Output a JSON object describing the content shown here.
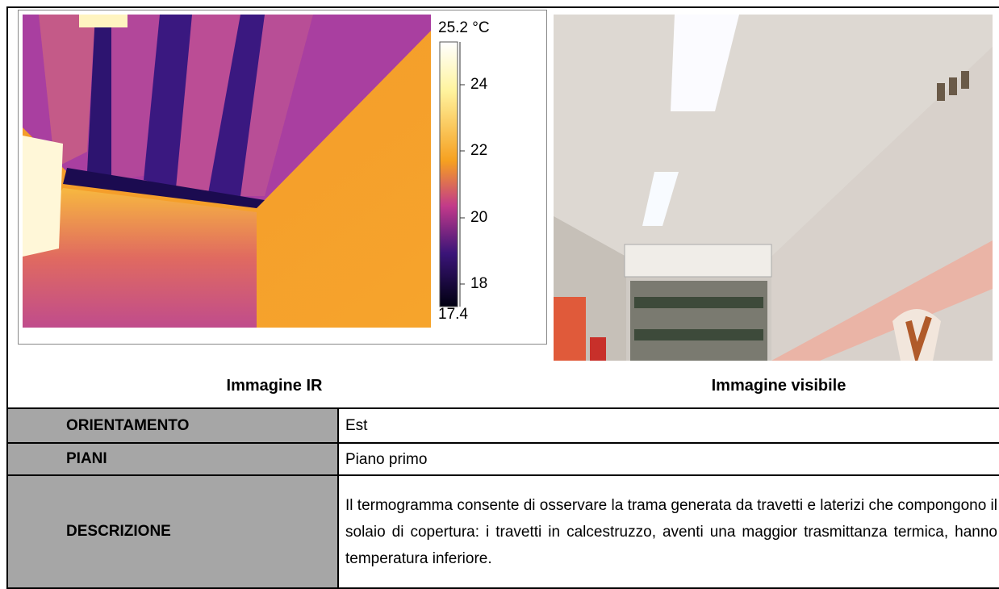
{
  "ir_image": {
    "scale": {
      "max": "25.2 °C",
      "ticks": [
        "24",
        "22",
        "20",
        "18"
      ],
      "min": "17.4"
    },
    "caption": "Immagine IR"
  },
  "visible_image": {
    "caption": "Immagine visibile"
  },
  "table": {
    "rows": [
      [
        "ORIENTAMENTO",
        "Est"
      ],
      [
        "PIANI",
        "Piano primo"
      ],
      [
        "DESCRIZIONE",
        "Il termogramma consente di osservare la trama generata da travetti e laterizi che compongono il solaio di copertura: i travetti in calcestruzzo, aventi una maggior trasmittanza termica, hanno temperatura inferiore."
      ]
    ]
  }
}
